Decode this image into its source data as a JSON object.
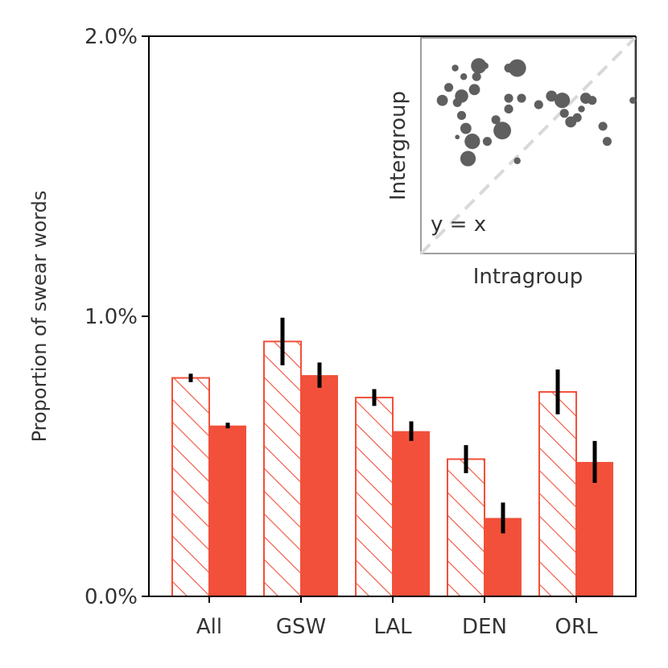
{
  "chart_data": [
    {
      "type": "bar",
      "title": "",
      "xlabel": "",
      "ylabel": "Proportion of swear words",
      "ylim": [
        0,
        2.0
      ],
      "yticks": [
        0,
        1.0,
        2.0
      ],
      "ytick_labels": [
        "0.0%",
        "1.0%",
        "2.0%"
      ],
      "categories": [
        "All",
        "GSW",
        "LAL",
        "DEN",
        "ORL"
      ],
      "series": [
        {
          "name": "Intragroup",
          "style": "hatched",
          "values": [
            0.78,
            0.91,
            0.71,
            0.49,
            0.73
          ],
          "error": [
            0.015,
            0.085,
            0.03,
            0.05,
            0.08
          ]
        },
        {
          "name": "Intergroup",
          "style": "solid",
          "values": [
            0.61,
            0.79,
            0.59,
            0.28,
            0.48
          ],
          "error": [
            0.01,
            0.045,
            0.035,
            0.055,
            0.075
          ]
        }
      ]
    },
    {
      "type": "scatter",
      "title": "",
      "xlabel": "Intragroup",
      "ylabel": "Intergroup",
      "xlim": [
        0,
        1
      ],
      "ylim": [
        0,
        1
      ],
      "reference_line_label": "y = x",
      "points": [
        {
          "x": 0.1,
          "y": 0.71,
          "size": 4
        },
        {
          "x": 0.13,
          "y": 0.77,
          "size": 3
        },
        {
          "x": 0.16,
          "y": 0.86,
          "size": 2
        },
        {
          "x": 0.17,
          "y": 0.54,
          "size": 1
        },
        {
          "x": 0.17,
          "y": 0.7,
          "size": 3
        },
        {
          "x": 0.19,
          "y": 0.73,
          "size": 5
        },
        {
          "x": 0.19,
          "y": 0.64,
          "size": 3
        },
        {
          "x": 0.2,
          "y": 0.82,
          "size": 2
        },
        {
          "x": 0.21,
          "y": 0.58,
          "size": 4
        },
        {
          "x": 0.22,
          "y": 0.44,
          "size": 6
        },
        {
          "x": 0.24,
          "y": 0.52,
          "size": 6
        },
        {
          "x": 0.25,
          "y": 0.76,
          "size": 4
        },
        {
          "x": 0.26,
          "y": 0.82,
          "size": 3
        },
        {
          "x": 0.27,
          "y": 0.87,
          "size": 6
        },
        {
          "x": 0.3,
          "y": 0.87,
          "size": 2
        },
        {
          "x": 0.31,
          "y": 0.52,
          "size": 3
        },
        {
          "x": 0.35,
          "y": 0.62,
          "size": 3
        },
        {
          "x": 0.38,
          "y": 0.57,
          "size": 7
        },
        {
          "x": 0.41,
          "y": 0.72,
          "size": 3
        },
        {
          "x": 0.41,
          "y": 0.67,
          "size": 3
        },
        {
          "x": 0.41,
          "y": 0.86,
          "size": 3
        },
        {
          "x": 0.45,
          "y": 0.86,
          "size": 7
        },
        {
          "x": 0.45,
          "y": 0.43,
          "size": 2
        },
        {
          "x": 0.47,
          "y": 0.72,
          "size": 3
        },
        {
          "x": 0.55,
          "y": 0.69,
          "size": 3
        },
        {
          "x": 0.61,
          "y": 0.73,
          "size": 4
        },
        {
          "x": 0.66,
          "y": 0.71,
          "size": 6
        },
        {
          "x": 0.67,
          "y": 0.65,
          "size": 3
        },
        {
          "x": 0.7,
          "y": 0.61,
          "size": 4
        },
        {
          "x": 0.73,
          "y": 0.63,
          "size": 3
        },
        {
          "x": 0.75,
          "y": 0.67,
          "size": 2
        },
        {
          "x": 0.77,
          "y": 0.72,
          "size": 4
        },
        {
          "x": 0.8,
          "y": 0.71,
          "size": 3
        },
        {
          "x": 0.85,
          "y": 0.59,
          "size": 3
        },
        {
          "x": 0.87,
          "y": 0.52,
          "size": 3
        },
        {
          "x": 0.99,
          "y": 0.71,
          "size": 2
        }
      ]
    }
  ],
  "colors": {
    "bar": "#f2503a",
    "axis": "#000000",
    "text": "#333333",
    "scatter_point": "#5f5f5f",
    "reference_line": "#d9d9d9",
    "inset_frame": "#7f7f7f"
  }
}
